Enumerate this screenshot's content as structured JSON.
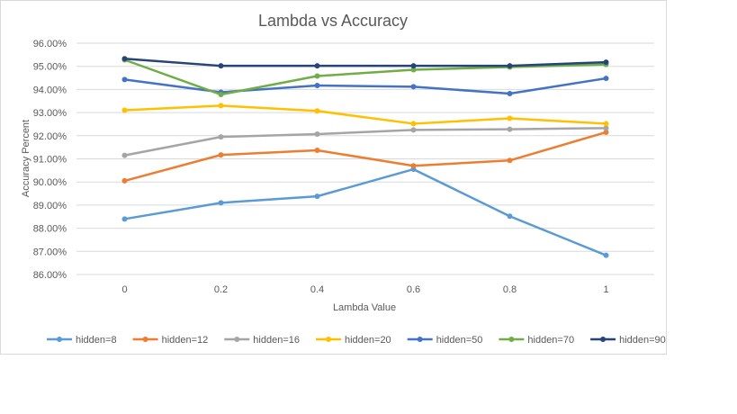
{
  "chart_data": {
    "type": "line",
    "title": "Lambda vs Accuracy",
    "xlabel": "Lambda Value",
    "ylabel": "Accuracy Percent",
    "categories": [
      "0",
      "0.2",
      "0.4",
      "0.6",
      "0.8",
      "1"
    ],
    "y_ticks": [
      "86.00%",
      "87.00%",
      "88.00%",
      "89.00%",
      "90.00%",
      "91.00%",
      "92.00%",
      "93.00%",
      "94.00%",
      "95.00%",
      "96.00%"
    ],
    "ylim": [
      86,
      96
    ],
    "grid": true,
    "legend_position": "bottom",
    "series": [
      {
        "name": "hidden=8",
        "color": "#5b9bd5",
        "values": [
          88.4,
          89.1,
          89.38,
          90.55,
          88.52,
          86.83
        ]
      },
      {
        "name": "hidden=12",
        "color": "#ed7d31",
        "values": [
          90.05,
          91.17,
          91.37,
          90.7,
          90.93,
          92.15
        ]
      },
      {
        "name": "hidden=16",
        "color": "#a5a5a5",
        "values": [
          91.15,
          91.95,
          92.07,
          92.25,
          92.28,
          92.33
        ]
      },
      {
        "name": "hidden=20",
        "color": "#ffc000",
        "values": [
          93.1,
          93.3,
          93.07,
          92.52,
          92.75,
          92.52
        ]
      },
      {
        "name": "hidden=50",
        "color": "#4472c4",
        "values": [
          94.43,
          93.88,
          94.17,
          94.12,
          93.82,
          94.48
        ]
      },
      {
        "name": "hidden=70",
        "color": "#70ad47",
        "values": [
          95.28,
          93.78,
          94.58,
          94.85,
          94.97,
          95.08
        ]
      },
      {
        "name": "hidden=90",
        "color": "#264478",
        "values": [
          95.33,
          95.02,
          95.02,
          95.02,
          95.02,
          95.18
        ]
      }
    ]
  }
}
